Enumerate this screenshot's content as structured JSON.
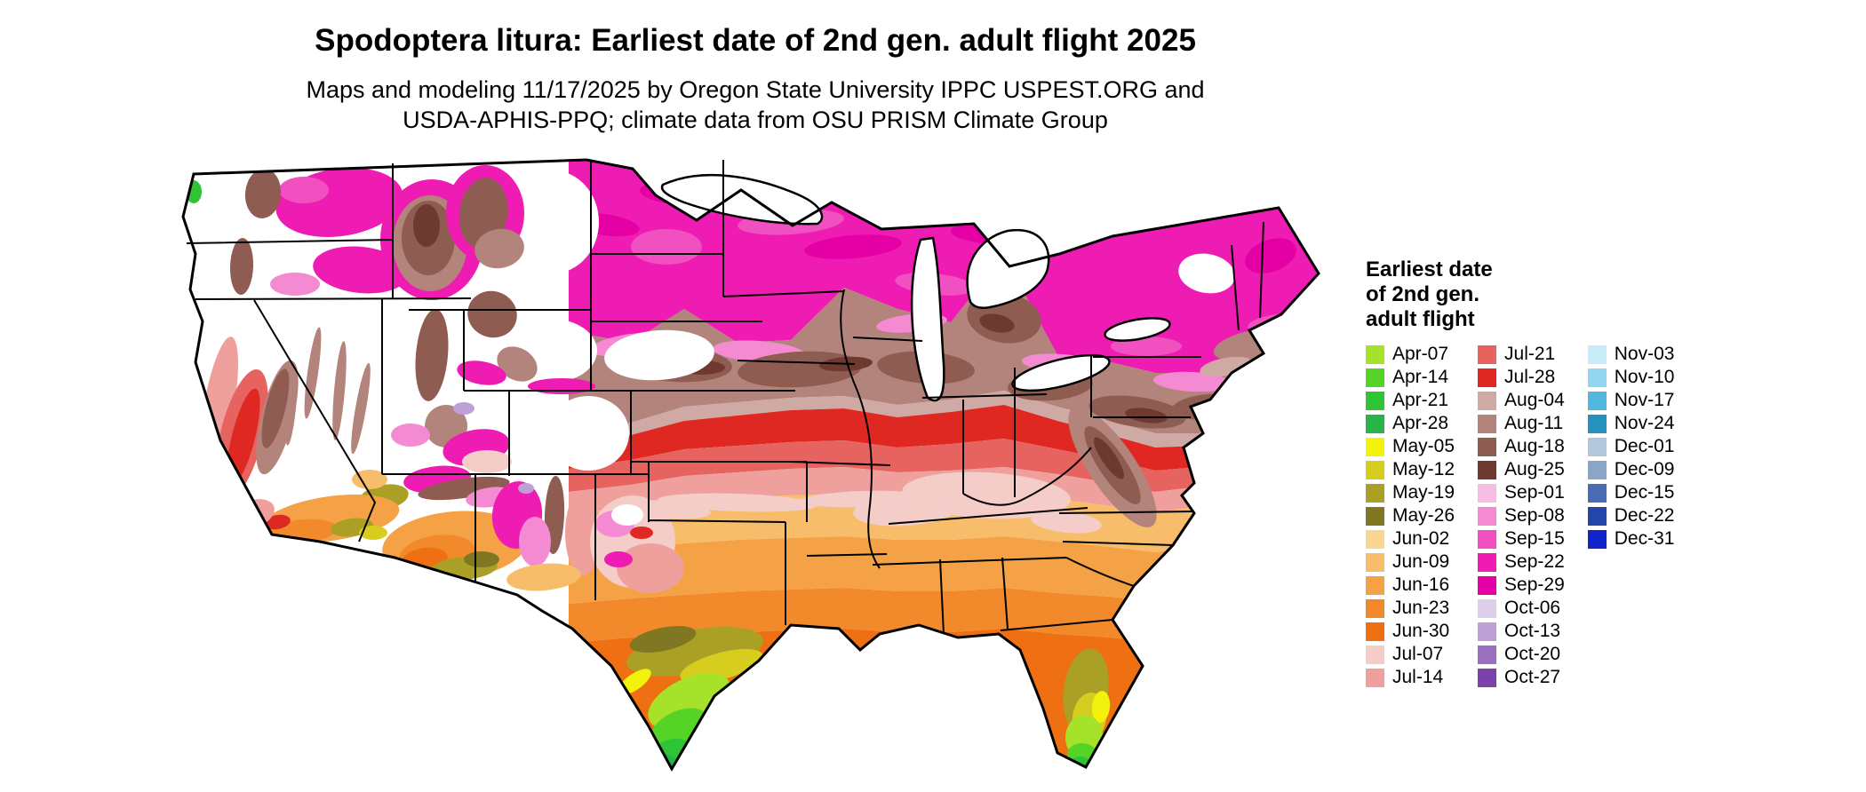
{
  "header": {
    "title": "Spodoptera litura: Earliest date of 2nd gen. adult flight 2025",
    "subtitle_line1": "Maps and modeling 11/17/2025 by Oregon State University IPPC USPEST.ORG and",
    "subtitle_line2": "USDA-APHIS-PPQ; climate data from OSU PRISM Climate Group"
  },
  "legend": {
    "title_lines": [
      "Earliest date",
      "of 2nd gen.",
      "adult flight"
    ],
    "columns": [
      {
        "entries": [
          {
            "label": "Apr-07",
            "color": "#a6e22a"
          },
          {
            "label": "Apr-14",
            "color": "#55d427"
          },
          {
            "label": "Apr-21",
            "color": "#2fc434"
          },
          {
            "label": "Apr-28",
            "color": "#28b44b"
          },
          {
            "label": "May-05",
            "color": "#f2f20c"
          },
          {
            "label": "May-12",
            "color": "#d6cd1e"
          },
          {
            "label": "May-19",
            "color": "#aaa026"
          },
          {
            "label": "May-26",
            "color": "#807722"
          },
          {
            "label": "Jun-02",
            "color": "#f8d891"
          },
          {
            "label": "Jun-09",
            "color": "#f7bd6a"
          },
          {
            "label": "Jun-16",
            "color": "#f5a247"
          },
          {
            "label": "Jun-23",
            "color": "#f28a2c"
          },
          {
            "label": "Jun-30",
            "color": "#ee7012"
          },
          {
            "label": "Jul-07",
            "color": "#f4cdc9"
          },
          {
            "label": "Jul-14",
            "color": "#ef9f9c"
          }
        ]
      },
      {
        "entries": [
          {
            "label": "Jul-21",
            "color": "#e66360"
          },
          {
            "label": "Jul-28",
            "color": "#e02823"
          },
          {
            "label": "Aug-04",
            "color": "#cfaaa4"
          },
          {
            "label": "Aug-11",
            "color": "#b3847b"
          },
          {
            "label": "Aug-18",
            "color": "#8f5c52"
          },
          {
            "label": "Aug-25",
            "color": "#6e3a30"
          },
          {
            "label": "Sep-01",
            "color": "#f7bce4"
          },
          {
            "label": "Sep-08",
            "color": "#f48ad2"
          },
          {
            "label": "Sep-15",
            "color": "#f050c0"
          },
          {
            "label": "Sep-22",
            "color": "#ee1cb2"
          },
          {
            "label": "Sep-29",
            "color": "#e400a4"
          },
          {
            "label": "Oct-06",
            "color": "#ded0ea"
          },
          {
            "label": "Oct-13",
            "color": "#bda0d6"
          },
          {
            "label": "Oct-20",
            "color": "#9b70c0"
          },
          {
            "label": "Oct-27",
            "color": "#7a42aa"
          }
        ]
      },
      {
        "entries": [
          {
            "label": "Nov-03",
            "color": "#c9ecf9"
          },
          {
            "label": "Nov-10",
            "color": "#92d7ef"
          },
          {
            "label": "Nov-17",
            "color": "#52b8de"
          },
          {
            "label": "Nov-24",
            "color": "#2492bd"
          },
          {
            "label": "Dec-01",
            "color": "#b3c6da"
          },
          {
            "label": "Dec-09",
            "color": "#8aa5c8"
          },
          {
            "label": "Dec-15",
            "color": "#4a6cb4"
          },
          {
            "label": "Dec-22",
            "color": "#2446a8"
          },
          {
            "label": "Dec-31",
            "color": "#1024c8"
          }
        ]
      }
    ]
  }
}
